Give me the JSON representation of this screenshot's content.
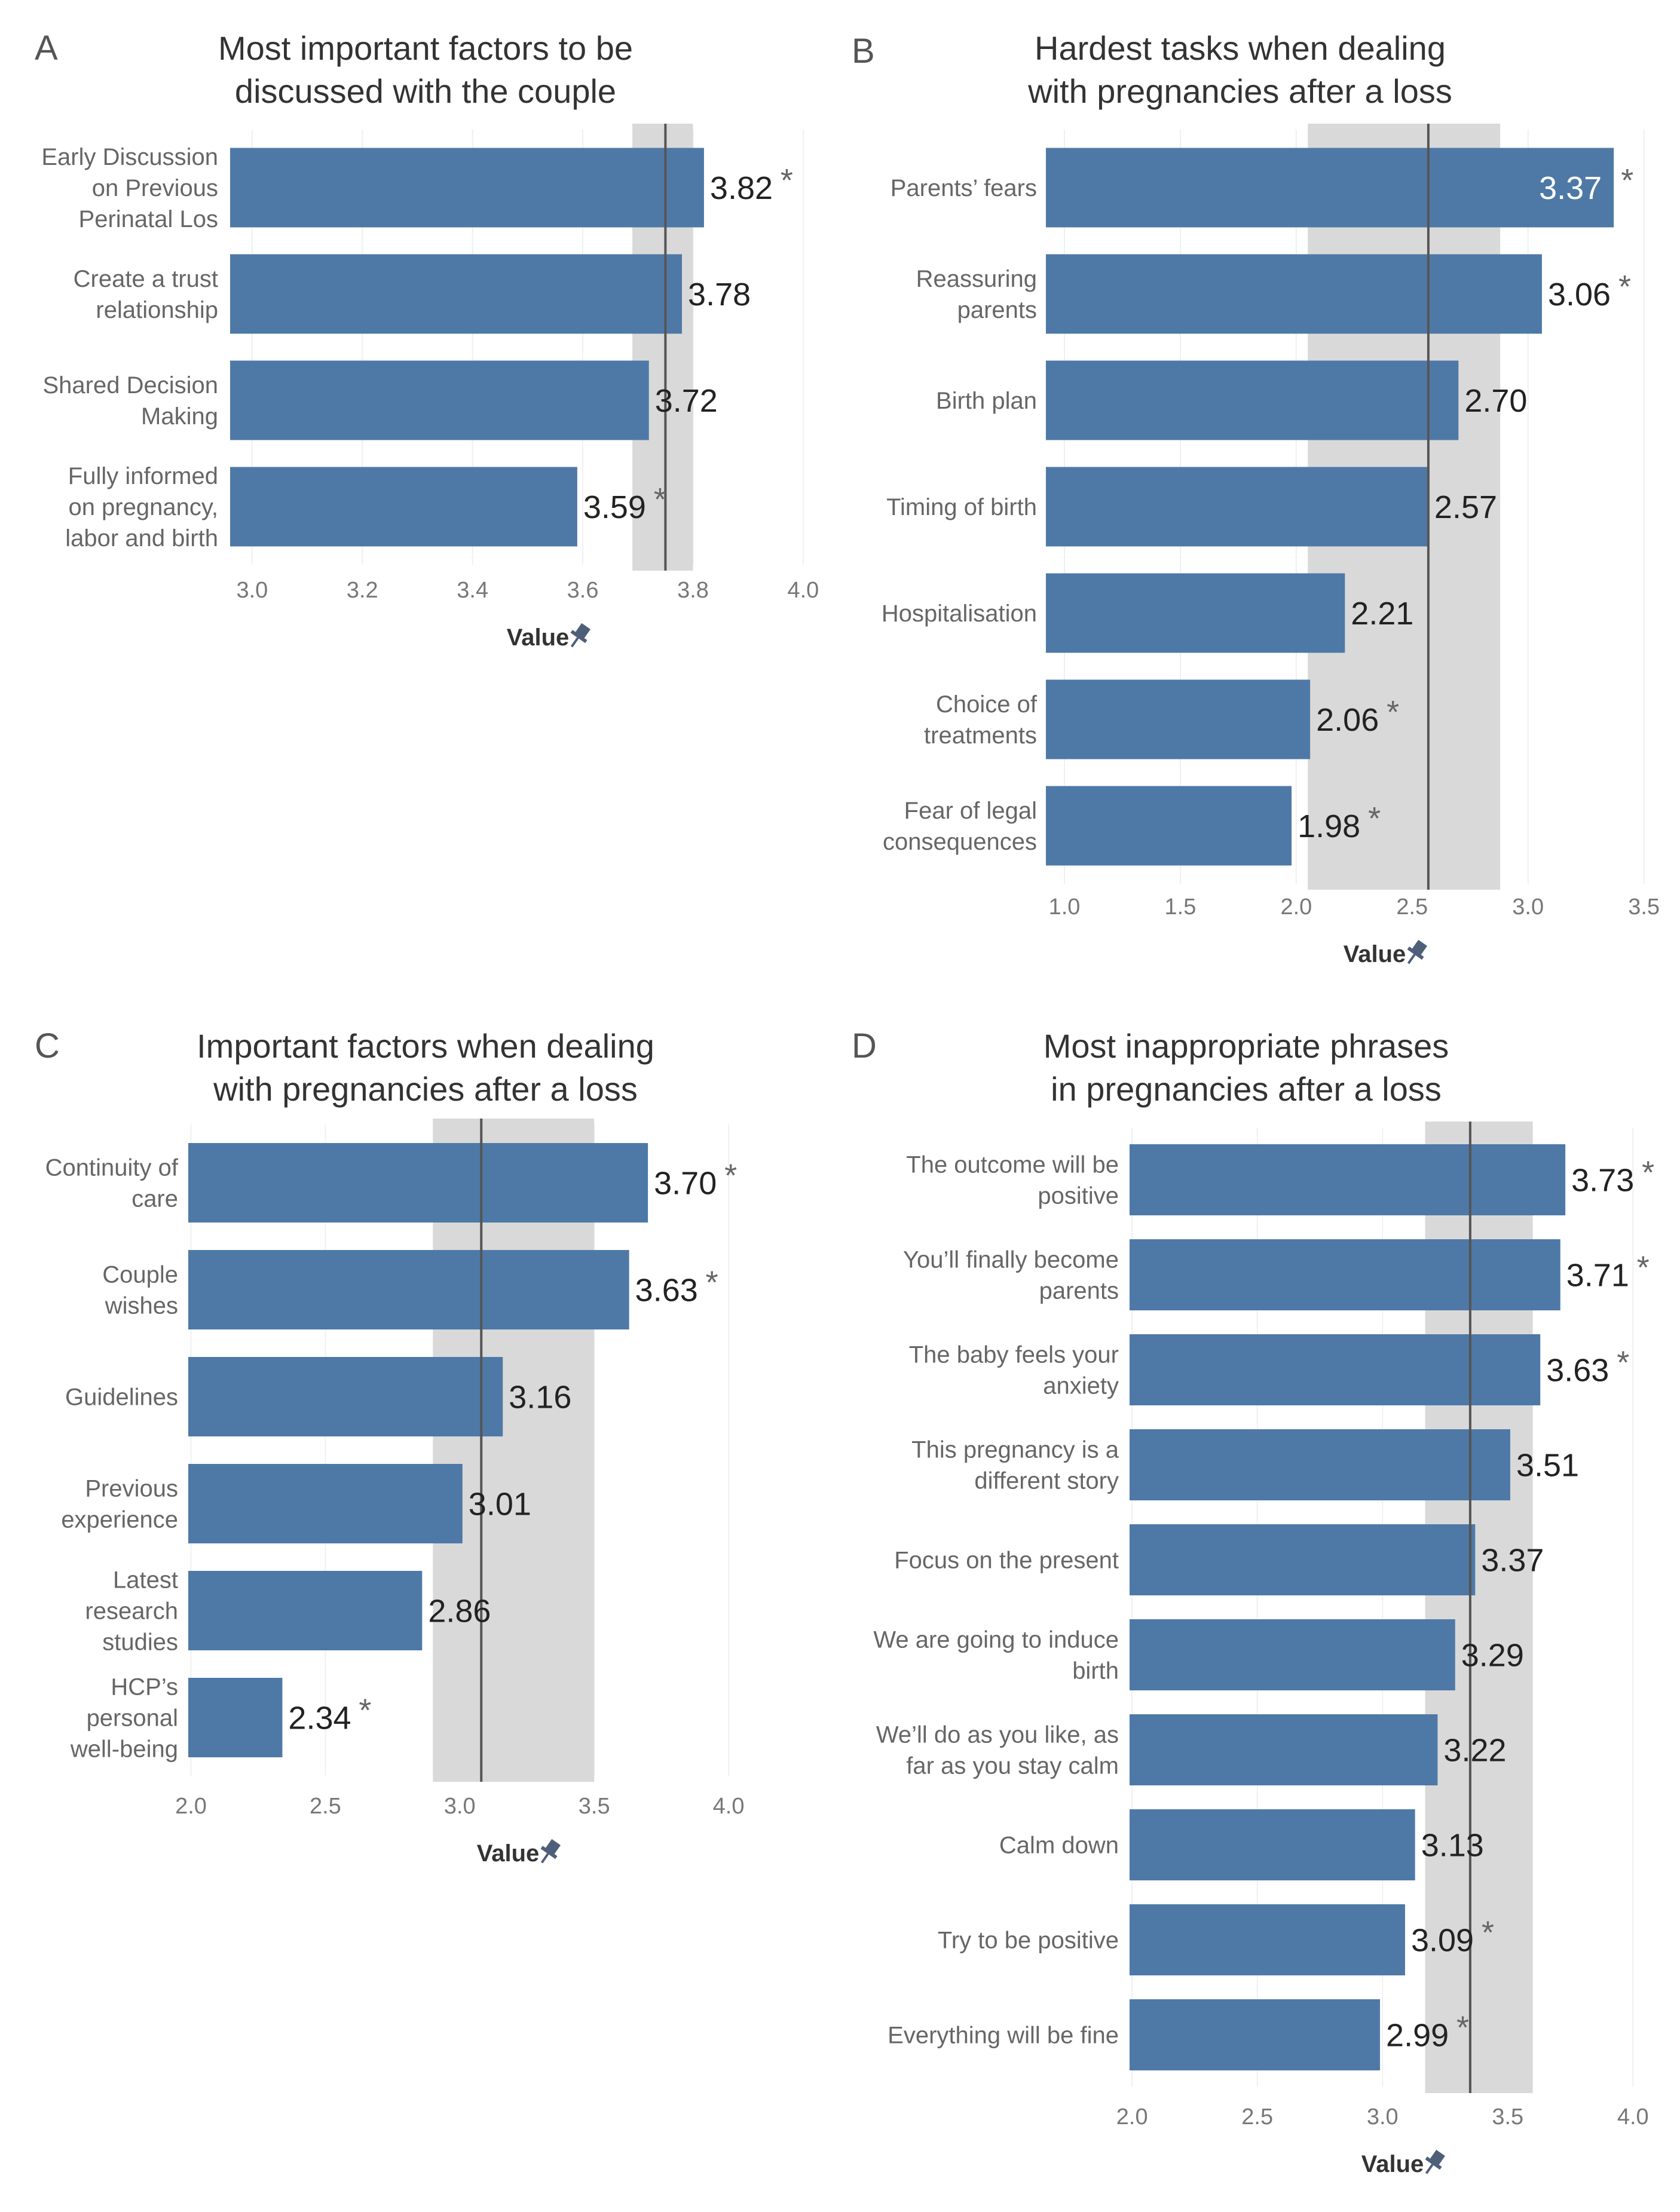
{
  "chart_data": [
    {
      "type": "bar",
      "panel": "A",
      "title": [
        "Most important factors to be",
        "discussed with the couple"
      ],
      "categories": [
        [
          "Early Discussion",
          "on Previous",
          "Perinatal Los"
        ],
        [
          "Create a trust",
          "relationship"
        ],
        [
          "Shared Decision",
          "Making"
        ],
        [
          "Fully informed",
          "on pregnancy,",
          "labor and birth"
        ]
      ],
      "values": [
        3.82,
        3.78,
        3.72,
        3.59
      ],
      "labels": [
        "3.82",
        "3.78",
        "3.72",
        "3.59"
      ],
      "significant": [
        true,
        false,
        false,
        true
      ],
      "xlim": [
        2.96,
        4.05
      ],
      "ticks": [
        3.0,
        3.2,
        3.4,
        3.6,
        3.8,
        4.0
      ],
      "tick_labels": [
        "3.0",
        "3.2",
        "3.4",
        "3.6",
        "3.8",
        "4.0"
      ],
      "reference_line": 3.75,
      "band": [
        3.69,
        3.8
      ],
      "xlabel": "Value"
    },
    {
      "type": "bar",
      "panel": "B",
      "title": [
        "Hardest tasks when dealing",
        "with pregnancies after a loss"
      ],
      "categories": [
        [
          "Parents’ fears"
        ],
        [
          "Reassuring",
          "parents"
        ],
        [
          "Birth plan"
        ],
        [
          "Timing of birth"
        ],
        [
          "Hospitalisation"
        ],
        [
          "Choice of",
          "treatments"
        ],
        [
          "Fear of legal",
          "consequences"
        ]
      ],
      "values": [
        3.37,
        3.06,
        2.7,
        2.57,
        2.21,
        2.06,
        1.98
      ],
      "labels": [
        "3.37",
        "3.06",
        "2.70",
        "2.57",
        "2.21",
        "2.06",
        "1.98"
      ],
      "significant": [
        true,
        true,
        false,
        false,
        false,
        true,
        true
      ],
      "xlim": [
        0.92,
        3.55
      ],
      "ticks": [
        1.0,
        1.5,
        2.0,
        2.5,
        3.0,
        3.5
      ],
      "tick_labels": [
        "1.0",
        "1.5",
        "2.0",
        "2.5",
        "3.0",
        "3.5"
      ],
      "reference_line": 2.57,
      "band": [
        2.05,
        2.88
      ],
      "xlabel": "Value"
    },
    {
      "type": "bar",
      "panel": "C",
      "title": [
        "Important factors when dealing",
        "with pregnancies after a loss"
      ],
      "categories": [
        [
          "Continuity of",
          "care"
        ],
        [
          "Couple",
          "wishes"
        ],
        [
          "Guidelines"
        ],
        [
          "Previous",
          "experience"
        ],
        [
          "Latest",
          "research",
          "studies"
        ],
        [
          "HCP’s",
          "personal",
          "well-being"
        ]
      ],
      "values": [
        3.7,
        3.63,
        3.16,
        3.01,
        2.86,
        2.34
      ],
      "labels": [
        "3.70",
        "3.63",
        "3.16",
        "3.01",
        "2.86",
        "2.34"
      ],
      "significant": [
        true,
        true,
        false,
        false,
        false,
        true
      ],
      "xlim": [
        1.99,
        4.38
      ],
      "ticks": [
        2.0,
        2.5,
        3.0,
        3.5,
        4.0
      ],
      "tick_labels": [
        "2.0",
        "2.5",
        "3.0",
        "3.5",
        "4.0"
      ],
      "reference_line": 3.08,
      "band": [
        2.9,
        3.5
      ],
      "xlabel": "Value"
    },
    {
      "type": "bar",
      "panel": "D",
      "title": [
        "Most inappropriate phrases",
        "in pregnancies after a loss"
      ],
      "categories": [
        [
          "The outcome will be",
          "positive"
        ],
        [
          "You’ll finally become",
          "parents"
        ],
        [
          "The baby feels your",
          "anxiety"
        ],
        [
          "This pregnancy is a",
          "different story"
        ],
        [
          "Focus on the present"
        ],
        [
          "We are going to induce",
          "birth"
        ],
        [
          "We’ll do as you like, as",
          "far as you stay calm"
        ],
        [
          "Calm down"
        ],
        [
          "Try to be positive"
        ],
        [
          "Everything will be fine"
        ]
      ],
      "values": [
        3.73,
        3.71,
        3.63,
        3.51,
        3.37,
        3.29,
        3.22,
        3.13,
        3.09,
        2.99
      ],
      "labels": [
        "3.73",
        "3.71",
        "3.63",
        "3.51",
        "3.37",
        "3.29",
        "3.22",
        "3.13",
        "3.09",
        "2.99"
      ],
      "significant": [
        true,
        true,
        true,
        false,
        false,
        false,
        false,
        false,
        true,
        true
      ],
      "xlim": [
        1.99,
        4.09
      ],
      "ticks": [
        2.0,
        2.5,
        3.0,
        3.5,
        4.0
      ],
      "tick_labels": [
        "2.0",
        "2.5",
        "3.0",
        "3.5",
        "4.0"
      ],
      "reference_line": 3.35,
      "band": [
        3.17,
        3.6
      ],
      "xlabel": "Value"
    }
  ],
  "significance_marker": "*"
}
